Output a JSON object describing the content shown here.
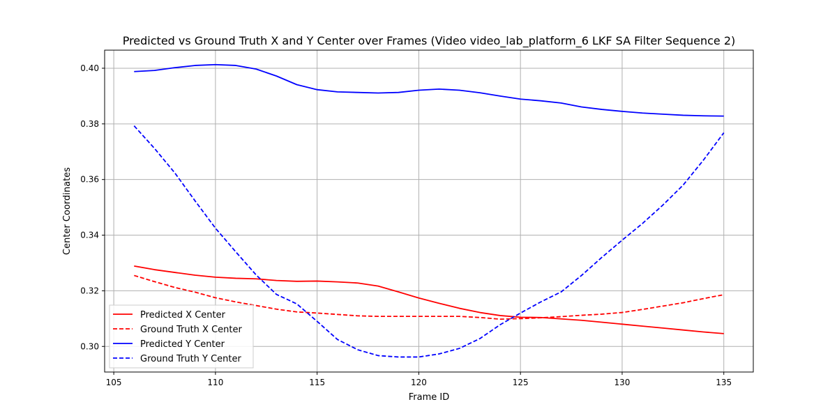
{
  "chart_data": {
    "type": "line",
    "title": "Predicted vs Ground Truth X and Y Center over Frames (Video video_lab_platform_6 LKF SA Filter Sequence 2)",
    "xlabel": "Frame ID",
    "ylabel": "Center Coordinates",
    "xlim": [
      104.55,
      136.45
    ],
    "ylim": [
      0.2908,
      0.4065
    ],
    "xticks": [
      105,
      110,
      115,
      120,
      125,
      130,
      135
    ],
    "yticks": [
      0.3,
      0.32,
      0.34,
      0.36,
      0.38,
      0.4
    ],
    "xtick_labels": [
      "105",
      "110",
      "115",
      "120",
      "125",
      "130",
      "135"
    ],
    "ytick_labels": [
      "0.30",
      "0.32",
      "0.34",
      "0.36",
      "0.38",
      "0.40"
    ],
    "grid": true,
    "legend_position": "lower-left",
    "x": [
      106,
      107,
      108,
      109,
      110,
      111,
      112,
      113,
      114,
      115,
      116,
      117,
      118,
      119,
      120,
      121,
      122,
      123,
      124,
      125,
      126,
      127,
      128,
      129,
      130,
      131,
      132,
      133,
      134,
      135
    ],
    "series": [
      {
        "name": "Predicted X Center",
        "color": "#ff0000",
        "dash": "solid",
        "values": [
          0.3289,
          0.3276,
          0.3266,
          0.3256,
          0.3249,
          0.3245,
          0.3243,
          0.3237,
          0.3234,
          0.3235,
          0.3232,
          0.3228,
          0.3217,
          0.3196,
          0.3174,
          0.3155,
          0.3137,
          0.3122,
          0.3111,
          0.3105,
          0.3104,
          0.3099,
          0.3094,
          0.3087,
          0.308,
          0.3073,
          0.3066,
          0.3059,
          0.3052,
          0.3046
        ]
      },
      {
        "name": "Ground Truth X Center",
        "color": "#ff0000",
        "dash": "dashed",
        "values": [
          0.3255,
          0.3233,
          0.3212,
          0.3195,
          0.3175,
          0.316,
          0.3147,
          0.3134,
          0.3124,
          0.312,
          0.3115,
          0.311,
          0.3108,
          0.3108,
          0.3108,
          0.3108,
          0.3108,
          0.3104,
          0.3098,
          0.31,
          0.3103,
          0.3107,
          0.3112,
          0.3116,
          0.3122,
          0.3133,
          0.3145,
          0.3157,
          0.3172,
          0.3186
        ]
      },
      {
        "name": "Predicted Y Center",
        "color": "#0000ff",
        "dash": "solid",
        "values": [
          0.3988,
          0.3992,
          0.4002,
          0.401,
          0.4013,
          0.401,
          0.3997,
          0.3972,
          0.3941,
          0.3923,
          0.3915,
          0.3913,
          0.3911,
          0.3913,
          0.3921,
          0.3925,
          0.3921,
          0.3912,
          0.39,
          0.3889,
          0.3883,
          0.3875,
          0.3861,
          0.3852,
          0.3845,
          0.3839,
          0.3835,
          0.3831,
          0.3829,
          0.3828
        ]
      },
      {
        "name": "Ground Truth Y Center",
        "color": "#0000ff",
        "dash": "dashed",
        "values": [
          0.3793,
          0.3712,
          0.3624,
          0.3523,
          0.3425,
          0.334,
          0.3257,
          0.3187,
          0.3153,
          0.309,
          0.3025,
          0.2988,
          0.2967,
          0.2962,
          0.2962,
          0.2973,
          0.2993,
          0.3028,
          0.3078,
          0.312,
          0.316,
          0.3196,
          0.3255,
          0.332,
          0.3382,
          0.3442,
          0.3508,
          0.358,
          0.367,
          0.3768
        ]
      }
    ]
  }
}
